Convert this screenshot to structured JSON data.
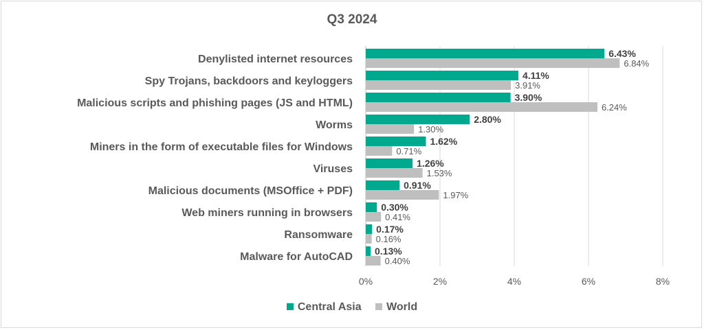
{
  "chart_data": {
    "type": "bar",
    "orientation": "horizontal",
    "title": "Q3 2024",
    "categories": [
      "Denylisted internet resources",
      "Spy Trojans, backdoors and keyloggers",
      "Malicious scripts and phishing pages (JS and HTML)",
      "Worms",
      "Miners in the form of executable files for Windows",
      "Viruses",
      "Malicious documents (MSOffice + PDF)",
      "Web miners running in browsers",
      "Ransomware",
      "Malware for AutoCAD"
    ],
    "series": [
      {
        "name": "Central Asia",
        "color": "#00a88e",
        "values": [
          6.43,
          4.11,
          3.9,
          2.8,
          1.62,
          1.26,
          0.91,
          0.3,
          0.17,
          0.13
        ],
        "labels": [
          "6.43%",
          "4.11%",
          "3.90%",
          "2.80%",
          "1.62%",
          "1.26%",
          "0.91%",
          "0.30%",
          "0.17%",
          "0.13%"
        ]
      },
      {
        "name": "World",
        "color": "#bfbfbf",
        "values": [
          6.84,
          3.91,
          6.24,
          1.3,
          0.71,
          1.53,
          1.97,
          0.41,
          0.16,
          0.4
        ],
        "labels": [
          "6.84%",
          "3.91%",
          "6.24%",
          "1.30%",
          "0.71%",
          "1.53%",
          "1.97%",
          "0.41%",
          "0.16%",
          "0.40%"
        ]
      }
    ],
    "x_ticks": [
      0,
      2,
      4,
      6,
      8
    ],
    "x_tick_labels": [
      "0%",
      "2%",
      "4%",
      "6%",
      "8%"
    ],
    "xlim": [
      0,
      8
    ],
    "grid": "vertical",
    "legend": "bottom"
  }
}
